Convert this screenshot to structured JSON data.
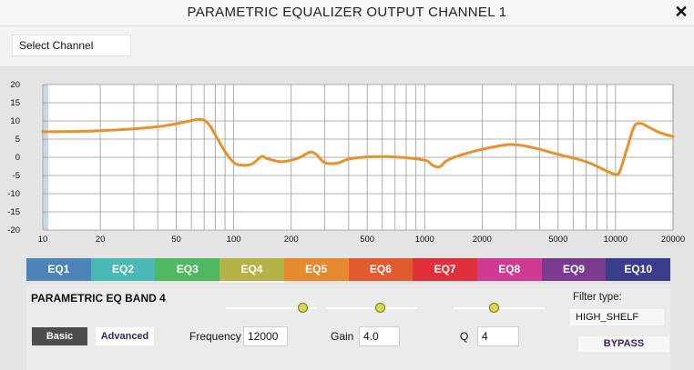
{
  "window": {
    "title": "PARAMETRIC EQUALIZER OUTPUT CHANNEL 1",
    "close_glyph": "✕"
  },
  "toolbar": {
    "select_channel_label": "Select Channel"
  },
  "chart_data": {
    "type": "line",
    "xscale": "log",
    "xlim": [
      10,
      20000
    ],
    "ylim": [
      -20,
      20
    ],
    "x_ticks": [
      10,
      20,
      50,
      100,
      200,
      500,
      1000,
      2000,
      5000,
      10000,
      20000
    ],
    "x_tick_labels": [
      "10",
      "20",
      "50",
      "100",
      "200",
      "500",
      "1000",
      "2000",
      "5000",
      "10000",
      "20000"
    ],
    "y_ticks": [
      20,
      15,
      10,
      5,
      0,
      -5,
      -10,
      -15,
      -20
    ],
    "y_tick_labels": [
      "20",
      "15",
      "10",
      "5",
      "0",
      "-5",
      "-10",
      "-15",
      "-20"
    ],
    "grid": true,
    "line_color": "#e8902a",
    "series": [
      {
        "x": [
          10,
          15,
          20,
          30,
          40,
          50,
          60,
          65,
          70,
          75,
          80,
          90,
          100,
          110,
          125,
          140,
          150,
          175,
          200,
          225,
          250,
          270,
          300,
          350,
          400,
          500,
          700,
          1000,
          1100,
          1200,
          1300,
          1500,
          2000,
          2500,
          2800,
          3200,
          4000,
          5000,
          6000,
          7000,
          8000,
          9000,
          10000,
          10500,
          11500,
          12500,
          13500,
          15000,
          17000,
          20000
        ],
        "y": [
          7,
          7.1,
          7.3,
          7.8,
          8.4,
          9.2,
          10.1,
          10.4,
          10.2,
          8.7,
          6.2,
          1.6,
          -1.4,
          -2.2,
          -1.8,
          0.2,
          -0.4,
          -1.2,
          -0.8,
          0.1,
          1.4,
          0.8,
          -1.5,
          -1.6,
          -0.5,
          0.1,
          0.1,
          -0.8,
          -2.2,
          -2.6,
          -1.0,
          0.4,
          2.2,
          3.2,
          3.5,
          3.3,
          2.2,
          0.8,
          -0.2,
          -1.2,
          -2.5,
          -3.8,
          -4.7,
          -4.0,
          2.5,
          8.4,
          9.3,
          8.2,
          6.8,
          5.7
        ]
      }
    ]
  },
  "eq_tabs": [
    {
      "label": "EQ1",
      "color": "#4c84b8"
    },
    {
      "label": "EQ2",
      "color": "#4ab8b4"
    },
    {
      "label": "EQ3",
      "color": "#4fb860"
    },
    {
      "label": "EQ4",
      "color": "#b5b348"
    },
    {
      "label": "EQ5",
      "color": "#e58a2e"
    },
    {
      "label": "EQ6",
      "color": "#e25b2f"
    },
    {
      "label": "EQ7",
      "color": "#e0303b"
    },
    {
      "label": "EQ8",
      "color": "#d13a92"
    },
    {
      "label": "EQ9",
      "color": "#7a3b8e"
    },
    {
      "label": "EQ10",
      "color": "#3a3d8c"
    }
  ],
  "active_tab": "EQ4",
  "band": {
    "title": "PARAMETRIC EQ BAND 4",
    "basic_label": "Basic",
    "advanced_label": "Advanced",
    "frequency_label": "Frequency",
    "frequency_value": "12000",
    "gain_label": "Gain",
    "gain_value": "4.0",
    "q_label": "Q",
    "q_value": "4",
    "frequency_slider_fraction": 0.85,
    "gain_slider_fraction": 0.6,
    "q_slider_fraction": 0.45,
    "filter_type_label": "Filter type:",
    "filter_type_value": "HIGH_SHELF",
    "bypass_label": "BYPASS",
    "knob_color": "#d8d84a"
  }
}
